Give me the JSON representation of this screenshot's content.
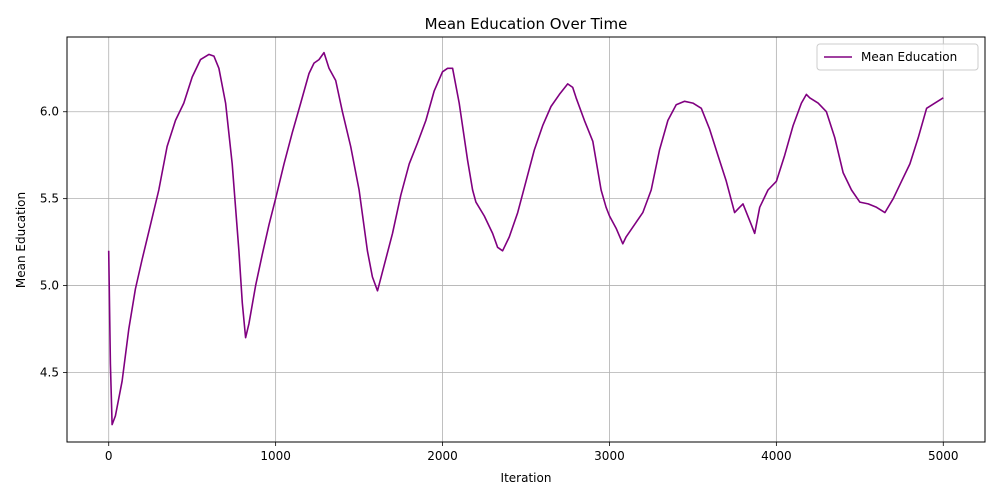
{
  "chart_data": {
    "type": "line",
    "title": "Mean Education Over Time",
    "xlabel": "Iteration",
    "ylabel": "Mean Education",
    "xlim": [
      -250,
      5250
    ],
    "ylim": [
      4.1,
      6.43
    ],
    "xticks": [
      0,
      1000,
      2000,
      3000,
      4000,
      5000
    ],
    "yticks": [
      4.5,
      5.0,
      5.5,
      6.0
    ],
    "xtick_labels": [
      "0",
      "1000",
      "2000",
      "3000",
      "4000",
      "5000"
    ],
    "ytick_labels": [
      "4.5",
      "5.0",
      "5.5",
      "6.0"
    ],
    "grid": true,
    "legend_position": "top-right",
    "series": [
      {
        "name": "Mean Education",
        "color": "#800080",
        "x": [
          0,
          10,
          20,
          40,
          80,
          120,
          160,
          200,
          250,
          300,
          350,
          400,
          450,
          500,
          550,
          600,
          630,
          660,
          700,
          740,
          780,
          800,
          820,
          840,
          880,
          920,
          960,
          1000,
          1050,
          1100,
          1150,
          1200,
          1230,
          1260,
          1290,
          1320,
          1360,
          1400,
          1450,
          1500,
          1550,
          1580,
          1610,
          1640,
          1700,
          1750,
          1800,
          1850,
          1900,
          1950,
          2000,
          2030,
          2060,
          2100,
          2150,
          2180,
          2200,
          2250,
          2300,
          2330,
          2360,
          2400,
          2450,
          2500,
          2550,
          2600,
          2650,
          2700,
          2750,
          2780,
          2800,
          2850,
          2900,
          2950,
          2980,
          3000,
          3040,
          3080,
          3100,
          3150,
          3200,
          3250,
          3300,
          3350,
          3400,
          3450,
          3500,
          3550,
          3600,
          3650,
          3700,
          3750,
          3780,
          3800,
          3850,
          3870,
          3900,
          3950,
          4000,
          4050,
          4100,
          4150,
          4180,
          4200,
          4250,
          4300,
          4350,
          4400,
          4450,
          4500,
          4550,
          4600,
          4650,
          4700,
          4750,
          4800,
          4850,
          4900,
          4950,
          5000
        ],
        "values": [
          5.2,
          4.55,
          4.2,
          4.25,
          4.45,
          4.75,
          4.98,
          5.15,
          5.35,
          5.55,
          5.8,
          5.95,
          6.05,
          6.2,
          6.3,
          6.33,
          6.32,
          6.25,
          6.05,
          5.7,
          5.2,
          4.9,
          4.7,
          4.78,
          5.0,
          5.18,
          5.35,
          5.5,
          5.7,
          5.88,
          6.05,
          6.22,
          6.28,
          6.3,
          6.34,
          6.25,
          6.18,
          6.0,
          5.8,
          5.55,
          5.2,
          5.05,
          4.97,
          5.08,
          5.3,
          5.52,
          5.7,
          5.82,
          5.95,
          6.12,
          6.23,
          6.25,
          6.25,
          6.05,
          5.72,
          5.55,
          5.48,
          5.4,
          5.3,
          5.22,
          5.2,
          5.28,
          5.42,
          5.6,
          5.78,
          5.92,
          6.03,
          6.1,
          6.16,
          6.14,
          6.08,
          5.95,
          5.83,
          5.55,
          5.45,
          5.4,
          5.33,
          5.24,
          5.28,
          5.35,
          5.42,
          5.55,
          5.78,
          5.95,
          6.04,
          6.06,
          6.05,
          6.02,
          5.9,
          5.75,
          5.6,
          5.42,
          5.45,
          5.47,
          5.35,
          5.3,
          5.45,
          5.55,
          5.6,
          5.75,
          5.92,
          6.05,
          6.1,
          6.08,
          6.05,
          6.0,
          5.85,
          5.65,
          5.55,
          5.48,
          5.47,
          5.45,
          5.42,
          5.5,
          5.6,
          5.7,
          5.85,
          6.02,
          6.05,
          6.08
        ]
      }
    ]
  }
}
